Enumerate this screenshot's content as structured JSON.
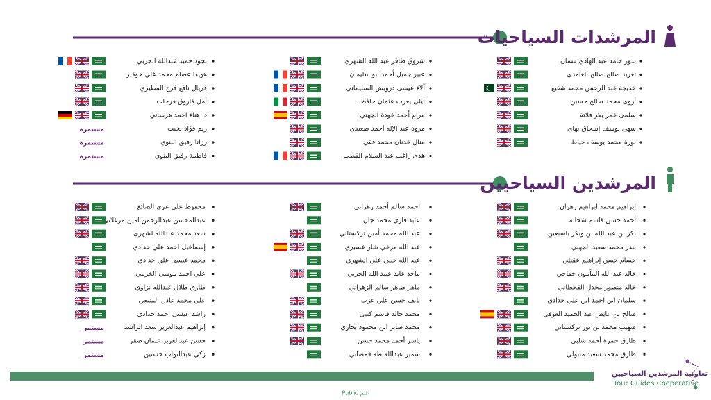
{
  "sections": [
    {
      "title": "المرشدات السياحيات",
      "columns": [
        [
          {
            "name": "بدور حامد عبد الهادي سمان"
          },
          {
            "name": "تغريد صالح صالح الغامدي"
          },
          {
            "name": "خديجة عبد الرحمن محمد شفيع"
          },
          {
            "name": "أروى محمد صالح حسين"
          },
          {
            "name": "سلمى عمر بكر فلاتة"
          },
          {
            "name": "سهى يوسف إسحاق بهاي"
          },
          {
            "name": "نورة محمد يوسف خياط"
          }
        ],
        [
          {
            "name": "شروق ظافر عبد الله الشهري"
          },
          {
            "name": "عبير جميل أحمد ابو سليمان"
          },
          {
            "name": "آلاء عيسى درويش السليماني"
          },
          {
            "name": "ليلى يعرب عثمان حافظ"
          },
          {
            "name": "مرام أحمد عودة الجهني"
          },
          {
            "name": "مروة عبد الإله أحمد صعيدي"
          },
          {
            "name": "منال عدنان محمد فقي"
          },
          {
            "name": "هدى راغب عبد السلام القطب"
          }
        ],
        [
          {
            "name": "نجود حميد عبدالله الحربي"
          },
          {
            "name": "هويدا عصام محمد غلي خوقير"
          },
          {
            "name": "فريال نافع فرج المطيري"
          },
          {
            "name": "أمل فاروق فرحات"
          },
          {
            "name": "د. هناء احمد هرساني"
          },
          {
            "name": "ريم فؤاد بخيت",
            "status": "مستمرة"
          },
          {
            "name": "رزانا رفيق البنوي",
            "status": "مستمرة"
          },
          {
            "name": "فاطمة رفيق البنوي",
            "status": "مستمرة"
          }
        ]
      ]
    },
    {
      "title": "المرشدين السياحيين",
      "columns": [
        [
          {
            "name": "إبراهيم محمد ابراهيم زهران"
          },
          {
            "name": "أحمد حسن قاسم شحاته"
          },
          {
            "name": "بكر بن عبد الله بن وبكر باسبعين"
          },
          {
            "name": "بندر محمد سعيد الجهني"
          },
          {
            "name": "حسام حسن إبراهيم عقيلي"
          },
          {
            "name": "خالد عبد الله المأمون خفاجي"
          },
          {
            "name": "خالد منصور مجدل القحطاني"
          },
          {
            "name": "سلمان ابن احمد ابن علي حدادي"
          },
          {
            "name": "صالح بن عايض عبد الحميد العوفي"
          },
          {
            "name": "صهيب محمد بن نور تركستاني"
          },
          {
            "name": "طارق حمزة أحمد شلبي"
          },
          {
            "name": "طارق محمد سعيد مثبولي"
          }
        ],
        [
          {
            "name": "احمد سالم أحمد زهراني"
          },
          {
            "name": "عابد فاري محمد جان"
          },
          {
            "name": "عبد الله محمد أمين تركستاني"
          },
          {
            "name": "عبد الله مرعي شار عسيري"
          },
          {
            "name": "عبد الله حبيي علي الشهري"
          },
          {
            "name": "ماجد عابد عبيد الله الحربي"
          },
          {
            "name": "ماهر طاهر سالم الزهراني"
          },
          {
            "name": "نايف حسن علي عزب"
          },
          {
            "name": "محمد خالد قاسم كتبي"
          },
          {
            "name": "محمد صابر ابن محمود بخاري"
          },
          {
            "name": "ياسر أحمد محمد حسن"
          },
          {
            "name": "سمير عبدالله طه قمصاني"
          }
        ],
        [
          {
            "name": "محفوظ علي عزي الصائغ"
          },
          {
            "name": "عبدالمحسن عبدالرحمن امين مرغلاني"
          },
          {
            "name": "سعد محمد عبدالله لشهري"
          },
          {
            "name": "إسماعيل احمد علي حدادي"
          },
          {
            "name": "محمد عيسى علي حدادي"
          },
          {
            "name": "علي احمد موسى الخرمي"
          },
          {
            "name": "طارق طلال عبدالله نزاوي"
          },
          {
            "name": "علي محمد عادل المنيعي"
          },
          {
            "name": "راشد عيسى احمد حدادي"
          },
          {
            "name": "إبراهيم عبدالعزيز سعد الراشد",
            "status": "مستمر"
          },
          {
            "name": "حسن عبدالعزيز عثمان صقر",
            "status": "مستمر"
          },
          {
            "name": "زكي عبدالتواب حسنين",
            "status": "مستمر"
          }
        ]
      ]
    }
  ],
  "logo": {
    "arabic": "تعاونية المرشدين السياحيين",
    "english": "Tour Guides Cooperative"
  },
  "classification": "Public علم"
}
